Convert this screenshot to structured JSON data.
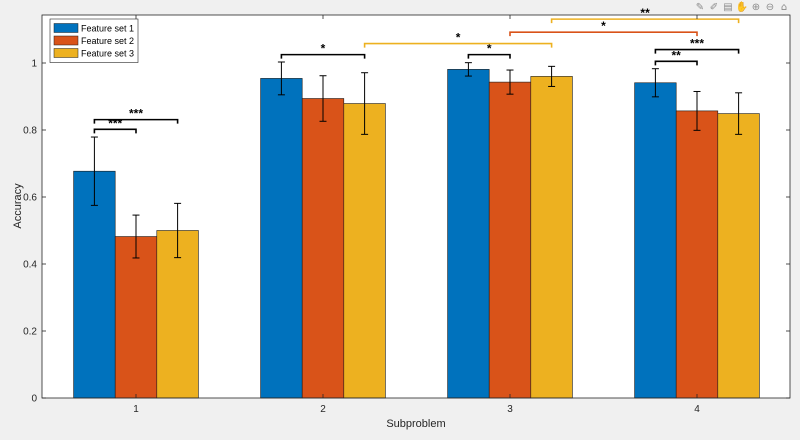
{
  "toolbar": {
    "icons": [
      "brush-icon",
      "data-tips-icon",
      "legend-toggle-icon",
      "pan-icon",
      "zoom-in-icon",
      "zoom-out-icon",
      "home-icon"
    ]
  },
  "chart_data": {
    "type": "bar",
    "title": "",
    "xlabel": "Subproblem",
    "ylabel": "Accuracy",
    "categories": [
      "1",
      "2",
      "3",
      "4"
    ],
    "ylim": [
      0,
      1.1
    ],
    "yticks": [
      0,
      0.2,
      0.4,
      0.6,
      0.8,
      1
    ],
    "ytick_labels": [
      "0",
      "0.2",
      "0.4",
      "0.6",
      "0.8",
      "1"
    ],
    "grid": false,
    "legend_position": "top-left",
    "series": [
      {
        "name": "Feature set 1",
        "color": "#0072BD",
        "values": [
          0.677,
          0.954,
          0.981,
          0.941
        ],
        "errors": [
          0.102,
          0.049,
          0.02,
          0.042
        ]
      },
      {
        "name": "Feature set 2",
        "color": "#D95319",
        "values": [
          0.482,
          0.894,
          0.943,
          0.857
        ],
        "errors": [
          0.064,
          0.068,
          0.036,
          0.058
        ]
      },
      {
        "name": "Feature set 3",
        "color": "#EDB120",
        "values": [
          0.5,
          0.879,
          0.96,
          0.849
        ],
        "errors": [
          0.081,
          0.092,
          0.03,
          0.062
        ]
      }
    ],
    "significance": [
      {
        "group": 0,
        "from": 0,
        "to": 1,
        "label": "***",
        "y": 0.802,
        "color": "#000000"
      },
      {
        "group": 0,
        "from": 0,
        "to": 2,
        "label": "***",
        "y": 0.831,
        "color": "#000000"
      },
      {
        "group": 1,
        "from": 0,
        "to": 2,
        "label": "*",
        "y": 1.025,
        "color": "#000000"
      },
      {
        "group": 2,
        "from": 0,
        "to": 1,
        "label": "*",
        "y": 1.025,
        "color": "#000000"
      },
      {
        "group": 3,
        "from": 0,
        "to": 1,
        "label": "**",
        "y": 1.005,
        "color": "#000000"
      },
      {
        "group": 3,
        "from": 0,
        "to": 2,
        "label": "***",
        "y": 1.04,
        "color": "#000000"
      },
      {
        "cross": true,
        "from_group": 1,
        "from_bar": 2,
        "to_group": 2,
        "to_bar": 2,
        "label": "*",
        "y": 1.058,
        "color": "#EDB120"
      },
      {
        "cross": true,
        "from_group": 2,
        "from_bar": 1,
        "to_group": 3,
        "to_bar": 1,
        "label": "*",
        "y": 1.092,
        "color": "#D95319"
      },
      {
        "cross": true,
        "from_group": 2,
        "from_bar": 2,
        "to_group": 3,
        "to_bar": 2,
        "label": "**",
        "y": 1.131,
        "color": "#EDB120"
      }
    ]
  }
}
